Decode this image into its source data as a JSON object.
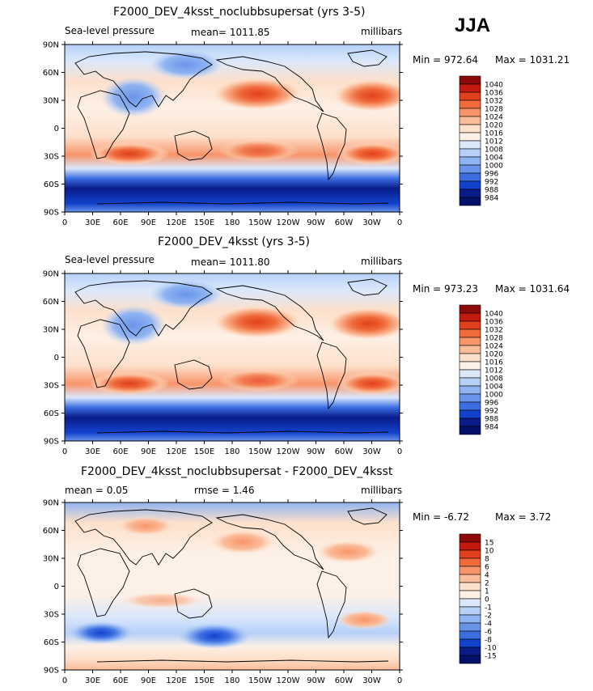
{
  "season": "JJA",
  "panels": [
    {
      "title": "F2000_DEV_4ksst_noclubbsupersat (yrs 3-5)",
      "left_label": "Sea-level pressure",
      "mid_label": "mean=  1011.85",
      "right_label": "millibars",
      "min_label": "Min = 972.64",
      "max_label": "Max = 1031.21",
      "colorbar_labels": [
        "1040",
        "1036",
        "1032",
        "1028",
        "1024",
        "1020",
        "1016",
        "1012",
        "1008",
        "1004",
        "1000",
        "996",
        "992",
        "988",
        "984"
      ]
    },
    {
      "title": "F2000_DEV_4ksst (yrs 3-5)",
      "left_label": "Sea-level pressure",
      "mid_label": "mean=  1011.80",
      "right_label": "millibars",
      "min_label": "Min = 973.23",
      "max_label": "Max = 1031.64",
      "colorbar_labels": [
        "1040",
        "1036",
        "1032",
        "1028",
        "1024",
        "1020",
        "1016",
        "1012",
        "1008",
        "1004",
        "1000",
        "996",
        "992",
        "988",
        "984"
      ]
    },
    {
      "title": "F2000_DEV_4ksst_noclubbsupersat - F2000_DEV_4ksst",
      "left_label": "mean =    0.05",
      "mid_label": "rmse =    1.46",
      "right_label": "millibars",
      "min_label": "Min =  -6.72",
      "max_label": "Max =    3.72",
      "colorbar_labels": [
        "15",
        "10",
        "8",
        "6",
        "4",
        "2",
        "1",
        "0",
        "-1",
        "-2",
        "-4",
        "-6",
        "-8",
        "-10",
        "-15"
      ]
    }
  ],
  "lat_ticks": [
    "90N",
    "60N",
    "30N",
    "0",
    "30S",
    "60S",
    "90S"
  ],
  "lon_ticks": [
    "0",
    "30E",
    "60E",
    "90E",
    "120E",
    "150E",
    "180",
    "150W",
    "120W",
    "90W",
    "60W",
    "30W",
    "0"
  ],
  "colors": {
    "full_scale": [
      "#8c0a0a",
      "#c21a0e",
      "#e0401c",
      "#f06a3a",
      "#f8946a",
      "#fbbc99",
      "#fde0cb",
      "#fdf0e6",
      "#dbe8fb",
      "#b6d0f8",
      "#8fb4f2",
      "#6a94ea",
      "#3c6ee2",
      "#1242cc",
      "#0a1c8a",
      "#05106a"
    ],
    "diff_scale": [
      "#8c0a0a",
      "#c21a0e",
      "#e0401c",
      "#f06a3a",
      "#f8946a",
      "#fbbc99",
      "#fde0cb",
      "#fdf0e6",
      "#dbe8fb",
      "#b6d0f8",
      "#8fb4f2",
      "#6a94ea",
      "#3c6ee2",
      "#1242cc",
      "#0a1c8a",
      "#05106a"
    ]
  }
}
